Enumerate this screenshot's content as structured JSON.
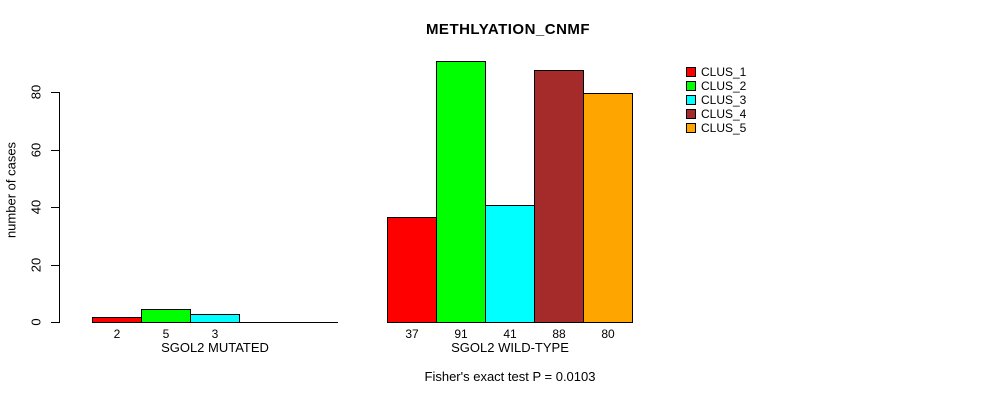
{
  "chart_data": {
    "type": "bar",
    "title": "METHLYATION_CNMF",
    "ylabel": "number of cases",
    "xlabel": "",
    "ylim": [
      0,
      95
    ],
    "yticks": [
      0,
      20,
      40,
      60,
      80
    ],
    "grid": false,
    "legend_position": "right",
    "legend": [
      "CLUS_1",
      "CLUS_2",
      "CLUS_3",
      "CLUS_4",
      "CLUS_5"
    ],
    "series_colors": [
      "#ff0000",
      "#00ff00",
      "#00ffff",
      "#a52a2a",
      "#ffa500"
    ],
    "categories": [
      "SGOL2 MUTATED",
      "SGOL2 WILD-TYPE"
    ],
    "groups": [
      {
        "label": "SGOL2 MUTATED",
        "values": [
          2,
          5,
          3,
          0,
          0
        ],
        "bar_labels": [
          "2",
          "5",
          "3",
          "",
          ""
        ]
      },
      {
        "label": "SGOL2 WILD-TYPE",
        "values": [
          37,
          91,
          41,
          88,
          80
        ],
        "bar_labels": [
          "37",
          "91",
          "41",
          "88",
          "80"
        ]
      }
    ],
    "annotation": "Fisher's exact test P = 0.0103",
    "text_color": "#000000",
    "background_color": "#ffffff"
  }
}
